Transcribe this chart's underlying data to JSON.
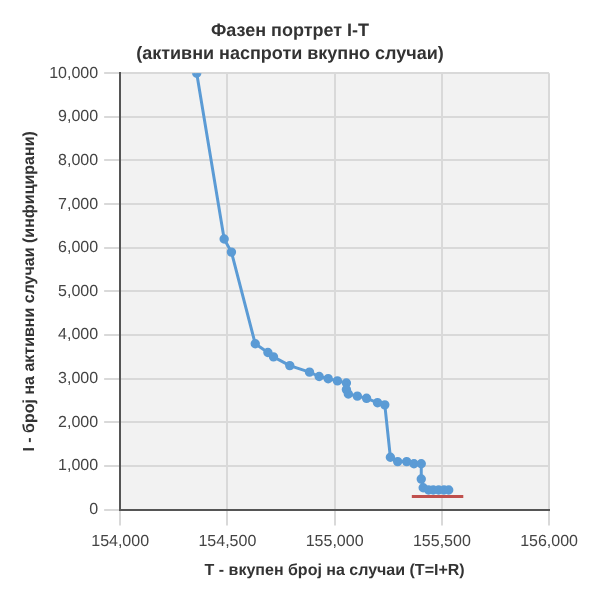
{
  "chart_data": {
    "type": "line",
    "title": "Фазен портрет I-T",
    "subtitle": "(активни наспроти вкупно случаи)",
    "xlabel": "T - вкупен број на случаи (T=I+R)",
    "ylabel": "I - број на активни случаи (инфицирани)",
    "series": [
      {
        "color": "#5b9bd5",
        "marker": "circle",
        "x": [
          154357,
          154485,
          154519,
          154630,
          154689,
          154715,
          154791,
          154883,
          154928,
          154970,
          155013,
          155055,
          155055,
          155064,
          155106,
          155149,
          155200,
          155234,
          155260,
          155294,
          155336,
          155370,
          155404,
          155404,
          155413,
          155438,
          155460,
          155485,
          155510,
          155532
        ],
        "values": [
          10000,
          6200,
          5900,
          3800,
          3600,
          3500,
          3300,
          3150,
          3050,
          3000,
          2950,
          2900,
          2750,
          2650,
          2600,
          2550,
          2450,
          2400,
          1200,
          1100,
          1100,
          1050,
          1050,
          700,
          500,
          450,
          450,
          450,
          450,
          450
        ]
      },
      {
        "type": "line",
        "color": "#c0504d",
        "marker": "none",
        "x": [
          155360,
          155600
        ],
        "values": [
          300,
          300
        ]
      }
    ],
    "xlim": [
      154000,
      156000
    ],
    "xticks": [
      {
        "value": 154000,
        "label": "154,000"
      },
      {
        "value": 154500,
        "label": "154,500"
      },
      {
        "value": 155000,
        "label": "155,000"
      },
      {
        "value": 155500,
        "label": "155,500"
      },
      {
        "value": 156000,
        "label": "156,000"
      }
    ],
    "ylim": [
      0,
      10000
    ],
    "yticks": [
      0,
      {
        "value": 1000,
        "label": "1,000"
      },
      {
        "value": 2000,
        "label": "2,000"
      },
      {
        "value": 3000,
        "label": "3,000"
      },
      {
        "value": 4000,
        "label": "4,000"
      },
      {
        "value": 5000,
        "label": "5,000"
      },
      {
        "value": 6000,
        "label": "6,000"
      },
      {
        "value": 7000,
        "label": "7,000"
      },
      {
        "value": 8000,
        "label": "8,000"
      },
      {
        "value": 9000,
        "label": "9,000"
      },
      {
        "value": 10000,
        "label": "10,000"
      }
    ],
    "grid": true,
    "legend": false
  }
}
